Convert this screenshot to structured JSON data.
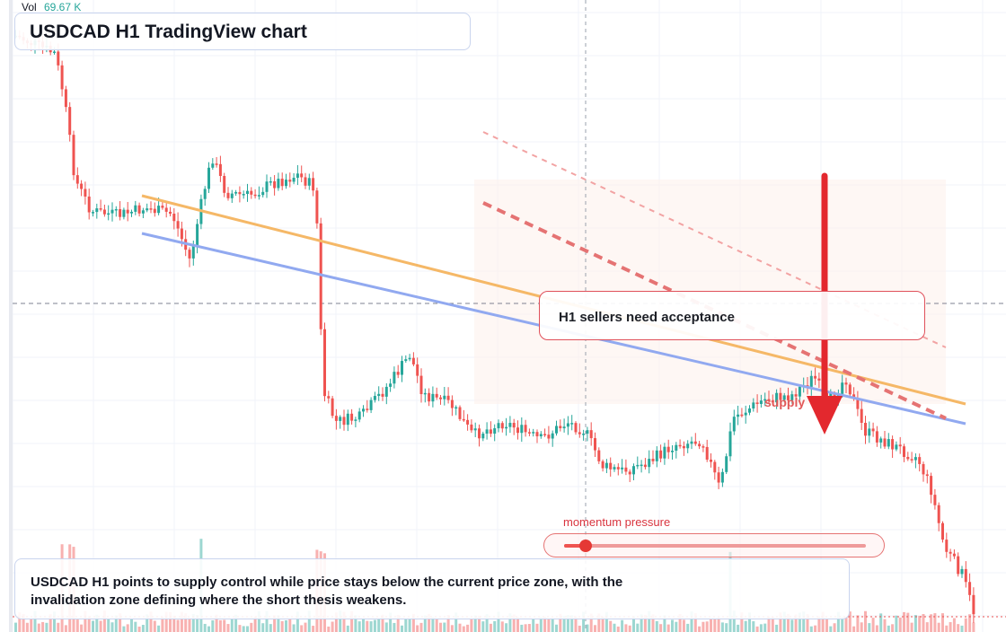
{
  "header": {
    "volume_label": "Vol",
    "volume_value": "69.67 K"
  },
  "title": "USDCAD H1 TradingView chart",
  "callout": "H1 sellers need acceptance",
  "zone_label": "supply",
  "momentum": {
    "label": "momentum pressure",
    "level": 0.07
  },
  "summary": "USDCAD H1 points to supply control while price stays below the current price zone, with the invalidation zone defining where the short thesis weakens.",
  "colors": {
    "up": "#26a69a",
    "down": "#ef5350",
    "trendline_orange": "#f5b867",
    "trendline_blue": "#91a9f0",
    "arrow": "#e3282e",
    "supply_zone": "#fdeee6"
  },
  "chart_data": {
    "type": "candlestick",
    "timeframe": "H1",
    "symbol": "USDCAD",
    "series": [
      {
        "name": "price",
        "values": []
      },
      {
        "name": "Vol",
        "values": []
      }
    ],
    "annotations": [
      "orange trendline",
      "blue trendline",
      "dashed red descending lines",
      "downward red arrow",
      "supply zone"
    ],
    "grid": true
  }
}
